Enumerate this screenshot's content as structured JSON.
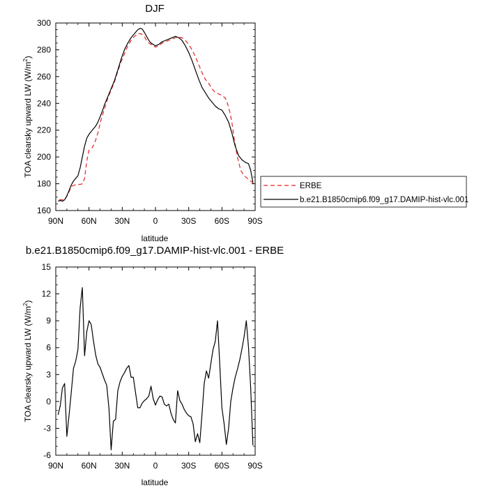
{
  "colors": {
    "obs": "#e8201f",
    "model": "#000000"
  },
  "chart_data": [
    {
      "type": "line",
      "title": "DJF",
      "xlabel": "latitude",
      "ylabel": "TOA clearsky upward LW (W/m",
      "ylabel_sup": "2",
      "ylabel_end": ")",
      "xlim": [
        90,
        -90
      ],
      "ylim": [
        160,
        300
      ],
      "xticks": [
        90,
        60,
        30,
        0,
        -30,
        -60,
        -90
      ],
      "xtick_labels": [
        "90N",
        "60N",
        "30N",
        "0",
        "30S",
        "60S",
        "90S"
      ],
      "yticks": [
        160,
        180,
        200,
        220,
        240,
        260,
        280,
        300
      ],
      "ytick_labels": [
        "160",
        "180",
        "200",
        "220",
        "240",
        "260",
        "280",
        "300"
      ],
      "legend_position": "right",
      "series": [
        {
          "name": "ERBE",
          "style": "dashed",
          "x": [
            87,
            85,
            82,
            79,
            76,
            73,
            70,
            68,
            66,
            64,
            62,
            60,
            57,
            55,
            52,
            49,
            46,
            43,
            40,
            37,
            34,
            31,
            28,
            25,
            22,
            19,
            16,
            13,
            10,
            8,
            6,
            4,
            2,
            0,
            -3,
            -6,
            -9,
            -12,
            -15,
            -18,
            -21,
            -24,
            -27,
            -30,
            -33,
            -36,
            -39,
            -42,
            -45,
            -48,
            -51,
            -54,
            -57,
            -60,
            -63,
            -65,
            -67,
            -69,
            -71,
            -74,
            -77,
            -80,
            -83,
            -86,
            -89
          ],
          "y": [
            168,
            168,
            168,
            172,
            178,
            179,
            179.5,
            179.5,
            180,
            184,
            197,
            205,
            207,
            210,
            218,
            228,
            236,
            244,
            250,
            256,
            264,
            271,
            277,
            283,
            287,
            290,
            292,
            292,
            290,
            287,
            285,
            284,
            283,
            282,
            283,
            285,
            286,
            287,
            288,
            289,
            289.5,
            289,
            287,
            284,
            280,
            275,
            269,
            263,
            258,
            255,
            251,
            248,
            247,
            246,
            244,
            240,
            234,
            226,
            214,
            200,
            190,
            186,
            184,
            182,
            180
          ]
        },
        {
          "name": "b.e21.B1850cmip6.f09_g17.DAMIP-hist-vlc.001",
          "style": "solid",
          "x": [
            88,
            86,
            84,
            82,
            80,
            78,
            76,
            74,
            72,
            70,
            68,
            66,
            64,
            62,
            60,
            58,
            56,
            54,
            52,
            50,
            48,
            46,
            43,
            40,
            37,
            34,
            31,
            28,
            25,
            22,
            19,
            16,
            14,
            12,
            10,
            8,
            6,
            4,
            2,
            0,
            -3,
            -6,
            -9,
            -12,
            -15,
            -18,
            -21,
            -24,
            -27,
            -30,
            -33,
            -36,
            -39,
            -42,
            -45,
            -48,
            -51,
            -54,
            -57,
            -60,
            -63,
            -66,
            -69,
            -72,
            -75,
            -78,
            -81,
            -84,
            -86,
            -88
          ],
          "y": [
            167,
            167.5,
            167,
            168,
            171,
            175,
            179,
            182,
            184,
            186,
            192,
            200,
            208,
            214,
            217,
            219,
            221,
            223,
            226,
            230,
            234,
            239,
            245,
            251,
            257,
            265,
            273,
            280,
            285,
            289,
            292,
            295,
            296,
            295.5,
            293,
            290,
            287,
            285,
            284,
            283,
            284,
            286,
            287,
            288,
            289,
            290,
            289,
            287,
            283,
            278,
            272,
            265,
            258,
            252,
            248,
            244,
            241,
            238,
            236,
            235,
            231,
            226,
            218,
            208,
            201,
            198,
            196,
            195,
            190,
            181
          ]
        }
      ]
    },
    {
      "type": "line",
      "title": "b.e21.B1850cmip6.f09_g17.DAMIP-hist-vlc.001 - ERBE",
      "xlabel": "latitude",
      "ylabel": "TOA clearsky upward LW (W/m",
      "ylabel_sup": "2",
      "ylabel_end": ")",
      "xlim": [
        90,
        -90
      ],
      "ylim": [
        -6,
        15
      ],
      "xticks": [
        90,
        60,
        30,
        0,
        -30,
        -60,
        -90
      ],
      "xtick_labels": [
        "90N",
        "60N",
        "30N",
        "0",
        "30S",
        "60S",
        "90S"
      ],
      "yticks": [
        -6,
        -3,
        0,
        3,
        6,
        9,
        12,
        15
      ],
      "ytick_labels": [
        "-6",
        "-3",
        "0",
        "3",
        "6",
        "9",
        "12",
        "15"
      ],
      "series": [
        {
          "style": "solid",
          "x": [
            88,
            86,
            84,
            82,
            80,
            78,
            76,
            74,
            72,
            70,
            68,
            66,
            64,
            62,
            60,
            58,
            56,
            54,
            52,
            50,
            48,
            46,
            44,
            42,
            40,
            38,
            36,
            34,
            32,
            30,
            28,
            26,
            24,
            22,
            20,
            18,
            16,
            14,
            12,
            10,
            8,
            6,
            4,
            2,
            0,
            -2,
            -4,
            -6,
            -8,
            -10,
            -12,
            -14,
            -16,
            -18,
            -20,
            -22,
            -24,
            -26,
            -28,
            -30,
            -32,
            -34,
            -36,
            -38,
            -40,
            -42,
            -44,
            -46,
            -48,
            -50,
            -52,
            -54,
            -56,
            -58,
            -60,
            -62,
            -64,
            -66,
            -68,
            -70,
            -72,
            -74,
            -76,
            -78,
            -80,
            -82,
            -84,
            -86,
            -88
          ],
          "y": [
            -1.5,
            -0.5,
            1.5,
            2.0,
            -3.9,
            -1.5,
            1.0,
            3.7,
            4.5,
            5.8,
            10.5,
            12.7,
            5.1,
            7.8,
            9.0,
            8.6,
            6.8,
            5.2,
            4.2,
            3.8,
            3.1,
            2.4,
            1.8,
            -0.8,
            -5.4,
            -2.2,
            -2.0,
            1.2,
            2.2,
            2.8,
            3.2,
            3.7,
            4.0,
            2.7,
            2.7,
            1.0,
            -0.7,
            -0.7,
            -0.2,
            0.1,
            0.3,
            0.6,
            1.7,
            0.3,
            -0.4,
            0.2,
            0.6,
            0.5,
            -0.3,
            -0.5,
            -0.3,
            -1.3,
            -2.0,
            -2.4,
            1.2,
            0.1,
            -0.3,
            -0.9,
            -1.3,
            -1.6,
            -1.7,
            -2.5,
            -4.5,
            -3.6,
            -4.6,
            -1.5,
            2.0,
            3.4,
            2.6,
            4.2,
            5.8,
            6.7,
            9.0,
            4.2,
            -0.7,
            -2.5,
            -4.8,
            -3.0,
            0.0,
            1.5,
            2.7,
            3.6,
            4.6,
            5.8,
            7.2,
            9.0,
            6.0,
            1.5,
            -4.9
          ]
        }
      ]
    }
  ]
}
